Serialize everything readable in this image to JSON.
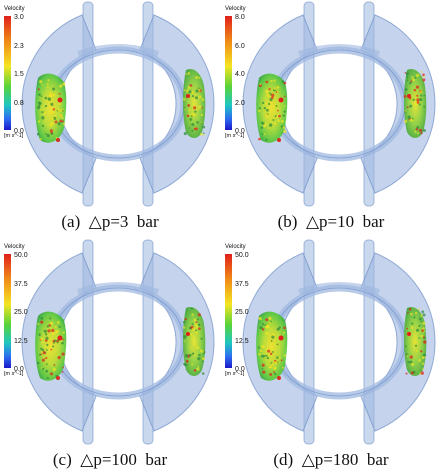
{
  "panels": [
    {
      "legend": {
        "title": "Velocity",
        "ticks": [
          "3.0",
          "2.3",
          "1.5",
          "0.8",
          "0.0"
        ],
        "unit": "[m s^-1]"
      },
      "caption": "(a)  △p=3  bar"
    },
    {
      "legend": {
        "title": "Velocity",
        "ticks": [
          "8.0",
          "6.0",
          "4.0",
          "2.0",
          "0.0"
        ],
        "unit": "[m s^-1]"
      },
      "caption": "(b)  △p=10  bar"
    },
    {
      "legend": {
        "title": "Velocity",
        "ticks": [
          "50.0",
          "37.5",
          "25.0",
          "12.5",
          "0.0"
        ],
        "unit": "[m s^-1]"
      },
      "caption": "(c)  △p=100  bar"
    },
    {
      "legend": {
        "title": "Velocity",
        "ticks": [
          "50.0",
          "37.5",
          "25.0",
          "12.5",
          "0.0"
        ],
        "unit": "[m s^-1]"
      },
      "caption": "(d)  △p=180  bar"
    }
  ],
  "colors": {
    "housing": "#9fb8e0",
    "housing_edge": "#6e8fc8",
    "scale": [
      "#e0201c",
      "#f08a18",
      "#f5e422",
      "#58d33a",
      "#1ec7c0",
      "#2c6df0",
      "#1b18c8"
    ]
  }
}
